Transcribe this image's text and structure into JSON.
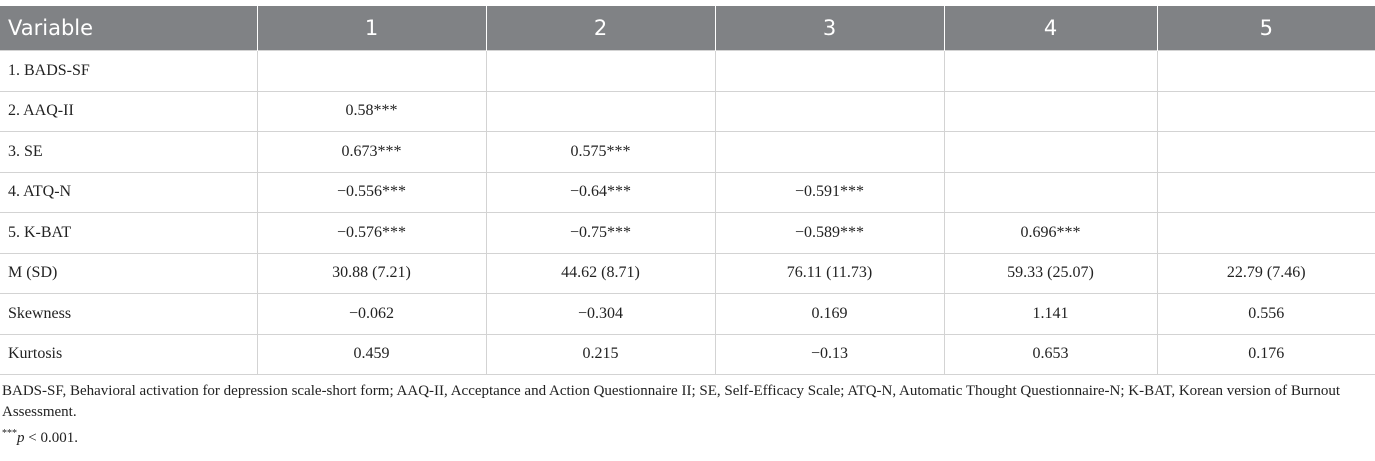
{
  "table": {
    "header": [
      "Variable",
      "1",
      "2",
      "3",
      "4",
      "5"
    ],
    "rows": [
      [
        "1. BADS-SF",
        null,
        null,
        null,
        null,
        null
      ],
      [
        "2. AAQ-II",
        "0.58***",
        null,
        null,
        null,
        null
      ],
      [
        "3. SE",
        "0.673***",
        "0.575***",
        null,
        null,
        null
      ],
      [
        "4. ATQ-N",
        "−0.556***",
        "−0.64***",
        "−0.591***",
        null,
        null
      ],
      [
        "5. K-BAT",
        "−0.576***",
        "−0.75***",
        "−0.589***",
        "0.696***",
        null
      ],
      [
        "M (SD)",
        "30.88 (7.21)",
        "44.62 (8.71)",
        "76.11 (11.73)",
        "59.33 (25.07)",
        "22.79 (7.46)"
      ],
      [
        "Skewness",
        "−0.062",
        "−0.304",
        "0.169",
        "1.141",
        "0.556"
      ],
      [
        "Kurtosis",
        "0.459",
        "0.215",
        "−0.13",
        "0.653",
        "0.176"
      ]
    ]
  },
  "footnote": {
    "abbreviations": "BADS-SF, Behavioral activation for depression scale-short form; AAQ-II, Acceptance and Action Questionnaire II; SE, Self-Efficacy Scale; ATQ-N, Automatic Thought Questionnaire-N; K-BAT, Korean version of Burnout Assessment.",
    "marker": "***",
    "p": "p",
    "text": " < 0.001."
  }
}
